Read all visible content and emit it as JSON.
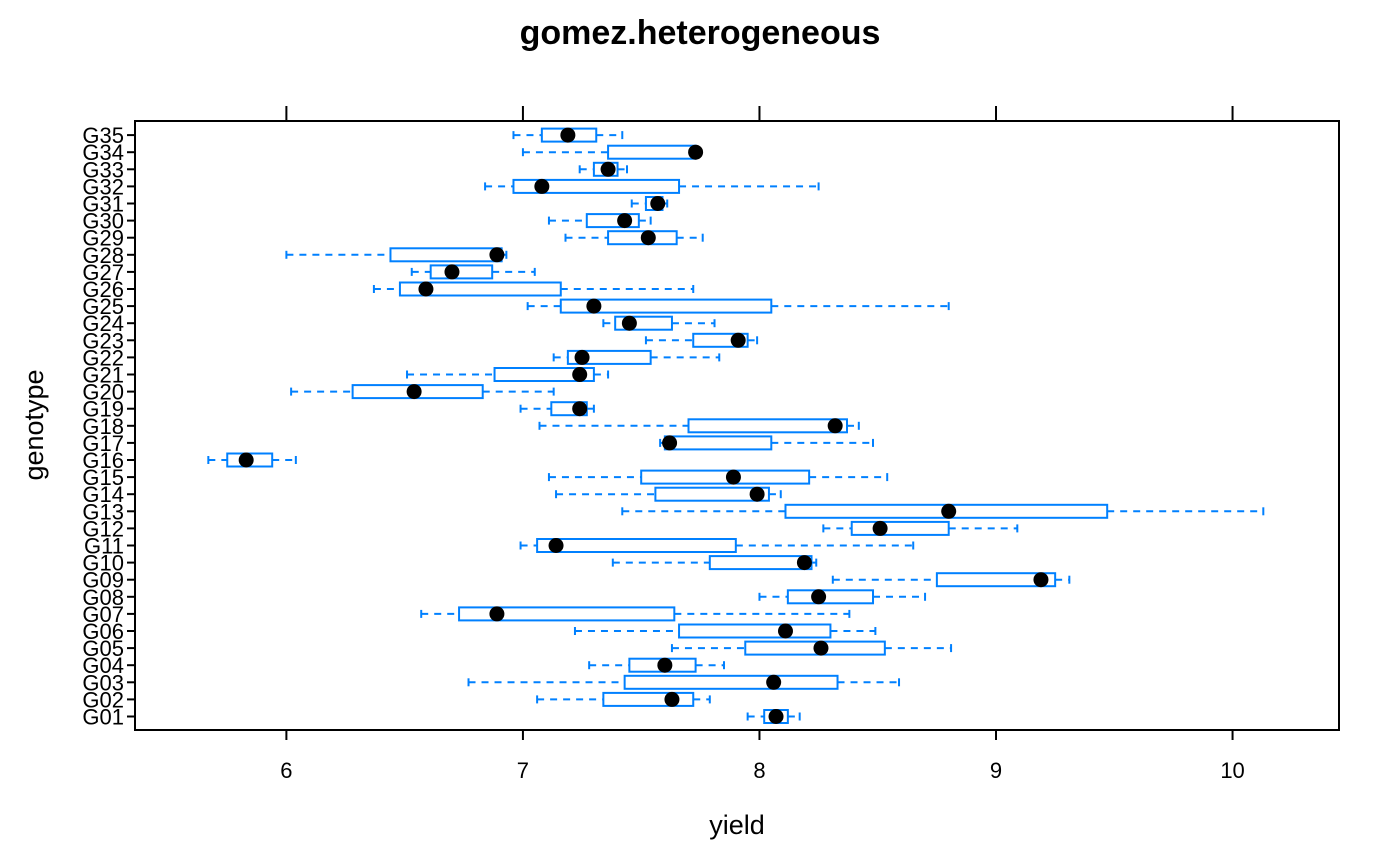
{
  "chart_data": {
    "type": "boxplot",
    "title": "gomez.heterogeneous",
    "xlabel": "yield",
    "ylabel": "genotype",
    "xlim": [
      5.36,
      10.45
    ],
    "xticks": [
      6,
      7,
      8,
      9,
      10
    ],
    "grid": false,
    "orientation": "horizontal",
    "colors": {
      "box": "#0080ff",
      "median": "#000000",
      "frame": "#000000"
    },
    "categories": [
      "G01",
      "G02",
      "G03",
      "G04",
      "G05",
      "G06",
      "G07",
      "G08",
      "G09",
      "G10",
      "G11",
      "G12",
      "G13",
      "G14",
      "G15",
      "G16",
      "G17",
      "G18",
      "G19",
      "G20",
      "G21",
      "G22",
      "G23",
      "G24",
      "G25",
      "G26",
      "G27",
      "G28",
      "G29",
      "G30",
      "G31",
      "G32",
      "G33",
      "G34",
      "G35"
    ],
    "boxes": [
      {
        "category": "G01",
        "min": 7.95,
        "q1": 8.02,
        "median": 8.07,
        "q3": 8.12,
        "max": 8.17
      },
      {
        "category": "G02",
        "min": 7.06,
        "q1": 7.34,
        "median": 7.63,
        "q3": 7.72,
        "max": 7.79
      },
      {
        "category": "G03",
        "min": 6.77,
        "q1": 7.43,
        "median": 8.06,
        "q3": 8.33,
        "max": 8.59
      },
      {
        "category": "G04",
        "min": 7.28,
        "q1": 7.45,
        "median": 7.6,
        "q3": 7.73,
        "max": 7.85
      },
      {
        "category": "G05",
        "min": 7.63,
        "q1": 7.94,
        "median": 8.26,
        "q3": 8.53,
        "max": 8.81
      },
      {
        "category": "G06",
        "min": 7.22,
        "q1": 7.66,
        "median": 8.11,
        "q3": 8.3,
        "max": 8.49
      },
      {
        "category": "G07",
        "min": 6.57,
        "q1": 6.73,
        "median": 6.89,
        "q3": 7.64,
        "max": 8.38
      },
      {
        "category": "G08",
        "min": 8.0,
        "q1": 8.12,
        "median": 8.25,
        "q3": 8.48,
        "max": 8.7
      },
      {
        "category": "G09",
        "min": 8.31,
        "q1": 8.75,
        "median": 9.19,
        "q3": 9.25,
        "max": 9.31
      },
      {
        "category": "G10",
        "min": 7.38,
        "q1": 7.79,
        "median": 8.19,
        "q3": 8.22,
        "max": 8.24
      },
      {
        "category": "G11",
        "min": 6.99,
        "q1": 7.06,
        "median": 7.14,
        "q3": 7.9,
        "max": 8.65
      },
      {
        "category": "G12",
        "min": 8.27,
        "q1": 8.39,
        "median": 8.51,
        "q3": 8.8,
        "max": 9.09
      },
      {
        "category": "G13",
        "min": 7.42,
        "q1": 8.11,
        "median": 8.8,
        "q3": 9.47,
        "max": 10.13
      },
      {
        "category": "G14",
        "min": 7.14,
        "q1": 7.56,
        "median": 7.99,
        "q3": 8.04,
        "max": 8.09
      },
      {
        "category": "G15",
        "min": 7.11,
        "q1": 7.5,
        "median": 7.89,
        "q3": 8.21,
        "max": 8.54
      },
      {
        "category": "G16",
        "min": 5.67,
        "q1": 5.75,
        "median": 5.83,
        "q3": 5.94,
        "max": 6.04
      },
      {
        "category": "G17",
        "min": 7.58,
        "q1": 7.6,
        "median": 7.62,
        "q3": 8.05,
        "max": 8.48
      },
      {
        "category": "G18",
        "min": 7.07,
        "q1": 7.7,
        "median": 8.32,
        "q3": 8.37,
        "max": 8.42
      },
      {
        "category": "G19",
        "min": 6.99,
        "q1": 7.12,
        "median": 7.24,
        "q3": 7.27,
        "max": 7.3
      },
      {
        "category": "G20",
        "min": 6.02,
        "q1": 6.28,
        "median": 6.54,
        "q3": 6.83,
        "max": 7.13
      },
      {
        "category": "G21",
        "min": 6.51,
        "q1": 6.88,
        "median": 7.24,
        "q3": 7.3,
        "max": 7.36
      },
      {
        "category": "G22",
        "min": 7.13,
        "q1": 7.19,
        "median": 7.25,
        "q3": 7.54,
        "max": 7.83
      },
      {
        "category": "G23",
        "min": 7.52,
        "q1": 7.72,
        "median": 7.91,
        "q3": 7.95,
        "max": 7.99
      },
      {
        "category": "G24",
        "min": 7.34,
        "q1": 7.39,
        "median": 7.45,
        "q3": 7.63,
        "max": 7.81
      },
      {
        "category": "G25",
        "min": 7.02,
        "q1": 7.16,
        "median": 7.3,
        "q3": 8.05,
        "max": 8.8
      },
      {
        "category": "G26",
        "min": 6.37,
        "q1": 6.48,
        "median": 6.59,
        "q3": 7.16,
        "max": 7.72
      },
      {
        "category": "G27",
        "min": 6.53,
        "q1": 6.61,
        "median": 6.7,
        "q3": 6.87,
        "max": 7.05
      },
      {
        "category": "G28",
        "min": 6.0,
        "q1": 6.44,
        "median": 6.89,
        "q3": 6.91,
        "max": 6.93
      },
      {
        "category": "G29",
        "min": 7.18,
        "q1": 7.36,
        "median": 7.53,
        "q3": 7.65,
        "max": 7.76
      },
      {
        "category": "G30",
        "min": 7.11,
        "q1": 7.27,
        "median": 7.43,
        "q3": 7.49,
        "max": 7.54
      },
      {
        "category": "G31",
        "min": 7.46,
        "q1": 7.52,
        "median": 7.57,
        "q3": 7.59,
        "max": 7.61
      },
      {
        "category": "G32",
        "min": 6.84,
        "q1": 6.96,
        "median": 7.08,
        "q3": 7.66,
        "max": 8.25
      },
      {
        "category": "G33",
        "min": 7.24,
        "q1": 7.3,
        "median": 7.36,
        "q3": 7.4,
        "max": 7.44
      },
      {
        "category": "G34",
        "min": 7.0,
        "q1": 7.36,
        "median": 7.73,
        "q3": 7.73,
        "max": 7.73
      },
      {
        "category": "G35",
        "min": 6.96,
        "q1": 7.08,
        "median": 7.19,
        "q3": 7.31,
        "max": 7.42
      }
    ]
  }
}
